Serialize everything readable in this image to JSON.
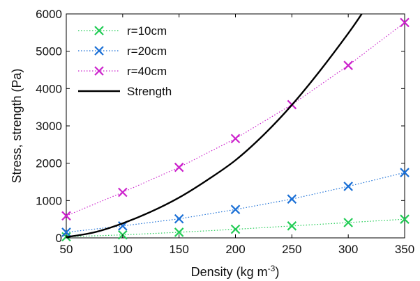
{
  "chart_data": {
    "type": "line",
    "xlabel": "Density (kg m",
    "xlabel_sup": "-3",
    "xlabel_suffix": ")",
    "ylabel": "Stress, strength (Pa)",
    "xlim": [
      50,
      350
    ],
    "ylim": [
      0,
      6000
    ],
    "xticks": [
      50,
      100,
      150,
      200,
      250,
      300,
      350
    ],
    "yticks": [
      0,
      1000,
      2000,
      3000,
      4000,
      5000,
      6000
    ],
    "grid": false,
    "legend_position": "top-left",
    "series": [
      {
        "name": "r=10cm",
        "color": "#22cc55",
        "style": "dotted-marker-x",
        "x": [
          50,
          100,
          150,
          200,
          250,
          300,
          350
        ],
        "y": [
          30,
          80,
          150,
          230,
          320,
          410,
          500
        ]
      },
      {
        "name": "r=20cm",
        "color": "#1a6fd6",
        "style": "dotted-marker-x",
        "x": [
          50,
          100,
          150,
          200,
          250,
          300,
          350
        ],
        "y": [
          150,
          320,
          510,
          760,
          1040,
          1380,
          1750
        ]
      },
      {
        "name": "r=40cm",
        "color": "#cc22cc",
        "style": "dotted-marker-x",
        "x": [
          50,
          100,
          150,
          200,
          250,
          300,
          350
        ],
        "y": [
          590,
          1220,
          1890,
          2660,
          3570,
          4620,
          5770
        ]
      },
      {
        "name": "Strength",
        "color": "#000000",
        "style": "solid",
        "x": [
          50,
          75,
          100,
          125,
          150,
          175,
          200,
          225,
          250,
          275,
          300,
          312
        ],
        "y": [
          20,
          150,
          390,
          700,
          1080,
          1550,
          2080,
          2760,
          3560,
          4480,
          5480,
          6000
        ]
      }
    ]
  }
}
